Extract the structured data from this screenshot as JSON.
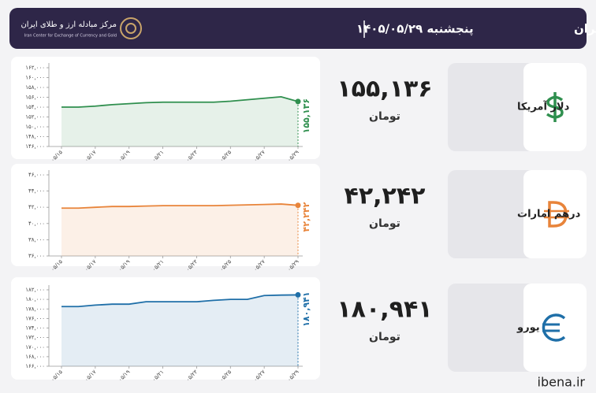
{
  "header": {
    "title": "نرخ قیمت ارز مرکز مبادله ایران",
    "date": "پنجشنبه ۱۴۰۵/۰۵/۲۹",
    "logo_name": "مرکز مبادله ارز و طلای ایران",
    "logo_subtitle": "Iran Center for Exchange of Currency and Gold"
  },
  "footer": "ibena.ir",
  "chart_data": [
    {
      "type": "line",
      "title": "دلار آمریکا",
      "unit": "تومان",
      "color": "#2f8f4e",
      "categories": [
        "۰۵/۱۵",
        null,
        "۰۵/۱۷",
        null,
        "۰۵/۱۹",
        null,
        "۰۵/۲۱",
        null,
        "۰۵/۲۳",
        null,
        "۰۵/۲۵",
        null,
        "۰۵/۲۷",
        null,
        "۰۵/۲۹"
      ],
      "values": [
        154000,
        154000,
        154200,
        154500,
        154700,
        154900,
        155000,
        155000,
        155000,
        155000,
        155200,
        155500,
        155800,
        156100,
        155136
      ],
      "value_labels": [
        null,
        null,
        null,
        null,
        null,
        null,
        null,
        null,
        null,
        null,
        null,
        null,
        null,
        null,
        "۱۵۵,۱۳۶"
      ],
      "ylim": [
        146000,
        162000
      ],
      "yticks": [
        {
          "value": 146000,
          "label": "۱۴۶,۰۰۰"
        },
        {
          "value": 148000,
          "label": "۱۴۸,۰۰۰"
        },
        {
          "value": 150000,
          "label": "۱۵۰,۰۰۰"
        },
        {
          "value": 152000,
          "label": "۱۵۲,۰۰۰"
        },
        {
          "value": 154000,
          "label": "۱۵۴,۰۰۰"
        },
        {
          "value": 156000,
          "label": "۱۵۶,۰۰۰"
        },
        {
          "value": 158000,
          "label": "۱۵۸,۰۰۰"
        },
        {
          "value": 160000,
          "label": "۱۶۰,۰۰۰"
        },
        {
          "value": 162000,
          "label": "۱۶۲,۰۰۰"
        }
      ]
    },
    {
      "type": "line",
      "title": "درهم امارات",
      "unit": "تومان",
      "color": "#e8843a",
      "categories": [
        "۰۵/۱۵",
        null,
        "۰۵/۱۷",
        null,
        "۰۵/۱۹",
        null,
        "۰۵/۲۱",
        null,
        "۰۵/۲۳",
        null,
        "۰۵/۲۵",
        null,
        "۰۵/۲۷",
        null,
        "۰۵/۲۹"
      ],
      "values": [
        41900,
        41900,
        42000,
        42100,
        42100,
        42150,
        42200,
        42200,
        42200,
        42200,
        42250,
        42300,
        42350,
        42400,
        42242
      ],
      "value_labels": [
        null,
        null,
        null,
        null,
        null,
        null,
        null,
        null,
        null,
        null,
        null,
        null,
        null,
        null,
        "۴۲,۲۴۲"
      ],
      "ylim": [
        36000,
        46000
      ],
      "yticks": [
        {
          "value": 36000,
          "label": "۳۶,۰۰۰"
        },
        {
          "value": 38000,
          "label": "۳۸,۰۰۰"
        },
        {
          "value": 40000,
          "label": "۴۰,۰۰۰"
        },
        {
          "value": 42000,
          "label": "۴۲,۰۰۰"
        },
        {
          "value": 44000,
          "label": "۴۴,۰۰۰"
        },
        {
          "value": 46000,
          "label": "۴۶,۰۰۰"
        }
      ]
    },
    {
      "type": "line",
      "title": "یورو",
      "unit": "تومان",
      "color": "#1f6fa8",
      "categories": [
        "۰۵/۱۵",
        null,
        "۰۵/۱۷",
        null,
        "۰۵/۱۹",
        null,
        "۰۵/۲۱",
        null,
        "۰۵/۲۳",
        null,
        "۰۵/۲۵",
        null,
        "۰۵/۲۷",
        null,
        "۰۵/۲۹"
      ],
      "values": [
        178500,
        178500,
        178800,
        179000,
        179000,
        179500,
        179500,
        179500,
        179500,
        179800,
        180000,
        180000,
        180800,
        180900,
        180941
      ],
      "value_labels": [
        null,
        null,
        null,
        null,
        null,
        null,
        null,
        null,
        null,
        null,
        null,
        null,
        null,
        null,
        "۱۸۰,۹۴۱"
      ],
      "ylim": [
        166000,
        182000
      ],
      "yticks": [
        {
          "value": 166000,
          "label": "۱۶۶,۰۰۰"
        },
        {
          "value": 168000,
          "label": "۱۶۸,۰۰۰"
        },
        {
          "value": 170000,
          "label": "۱۷۰,۰۰۰"
        },
        {
          "value": 172000,
          "label": "۱۷۲,۰۰۰"
        },
        {
          "value": 174000,
          "label": "۱۷۴,۰۰۰"
        },
        {
          "value": 176000,
          "label": "۱۷۶,۰۰۰"
        },
        {
          "value": 178000,
          "label": "۱۷۸,۰۰۰"
        },
        {
          "value": 180000,
          "label": "۱۸۰,۰۰۰"
        },
        {
          "value": 182000,
          "label": "۱۸۲,۰۰۰"
        }
      ]
    }
  ]
}
